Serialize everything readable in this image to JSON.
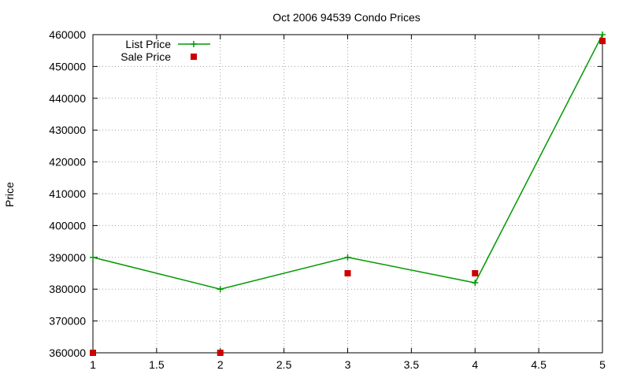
{
  "chart_data": {
    "type": "line",
    "title": "Oct 2006 94539 Condo Prices",
    "xlabel": "",
    "ylabel": "Price",
    "xlim": [
      1,
      5
    ],
    "ylim": [
      360000,
      460000
    ],
    "x_ticks": [
      "1",
      "1.5",
      "2",
      "2.5",
      "3",
      "3.5",
      "4",
      "4.5",
      "5"
    ],
    "y_ticks": [
      "360000",
      "370000",
      "380000",
      "390000",
      "400000",
      "410000",
      "420000",
      "430000",
      "440000",
      "450000",
      "460000"
    ],
    "grid": true,
    "legend_position": "top-left",
    "series": [
      {
        "name": "List Price",
        "style": "linespoints",
        "marker": "plus",
        "color": "#009900",
        "x": [
          1,
          2,
          3,
          4,
          5
        ],
        "y": [
          390000,
          380000,
          390000,
          382000,
          460000
        ]
      },
      {
        "name": "Sale Price",
        "style": "points",
        "marker": "square",
        "color": "#cc0000",
        "x": [
          1,
          2,
          3,
          4,
          5
        ],
        "y": [
          360000,
          360000,
          385000,
          385000,
          458000
        ]
      }
    ]
  }
}
